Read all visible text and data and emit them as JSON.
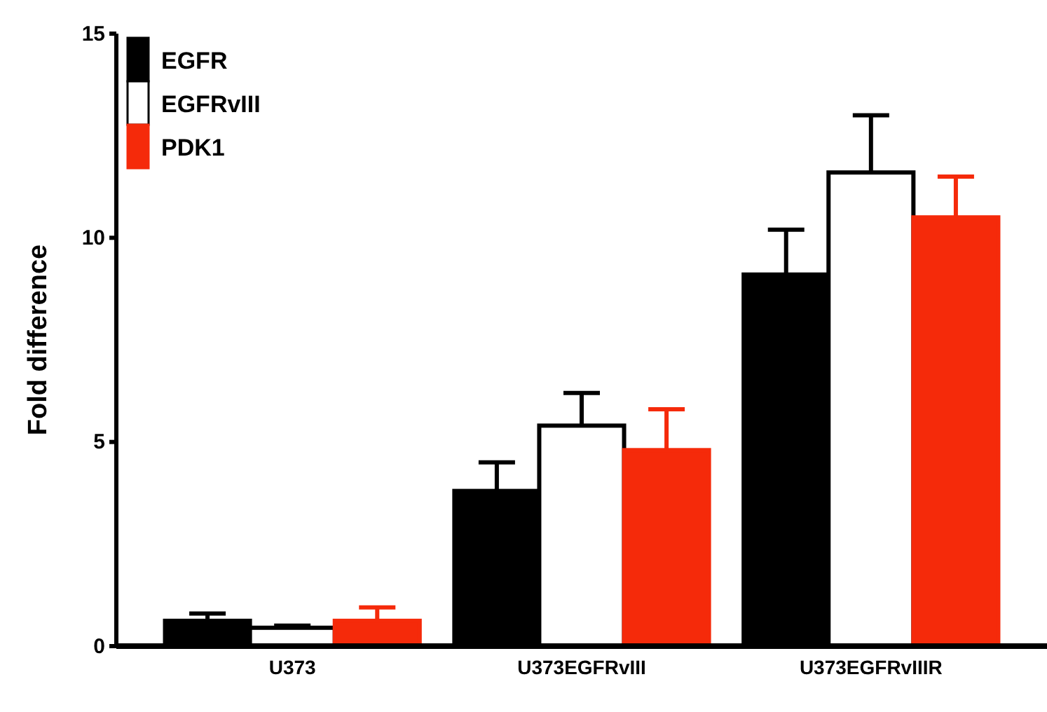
{
  "chart_data": {
    "type": "bar",
    "ylabel": "Fold difference",
    "categories": [
      "U373",
      "U373EGFRvIII",
      "U373EGFRvIIIR"
    ],
    "series": [
      {
        "name": "EGFR",
        "color": "#000000",
        "values": [
          0.62,
          3.8,
          9.1
        ],
        "errors": [
          [
            0.62,
            0.8
          ],
          [
            3.8,
            4.5
          ],
          [
            9.1,
            10.2
          ]
        ]
      },
      {
        "name": "EGFRvIII",
        "color": "#ffffff",
        "values": [
          0.45,
          5.4,
          11.6
        ],
        "errors": [
          [
            0.45,
            0.5
          ],
          [
            5.4,
            6.2
          ],
          [
            11.6,
            13.0
          ]
        ]
      },
      {
        "name": "PDK1",
        "color": "#f52a0a",
        "values": [
          0.62,
          4.8,
          10.5
        ],
        "errors": [
          [
            0.62,
            0.95
          ],
          [
            4.8,
            5.8
          ],
          [
            10.5,
            11.5
          ]
        ]
      }
    ],
    "ylim": [
      0,
      15
    ],
    "yticks": [
      0,
      5,
      10,
      15
    ],
    "grid": false,
    "legend": "top left"
  }
}
